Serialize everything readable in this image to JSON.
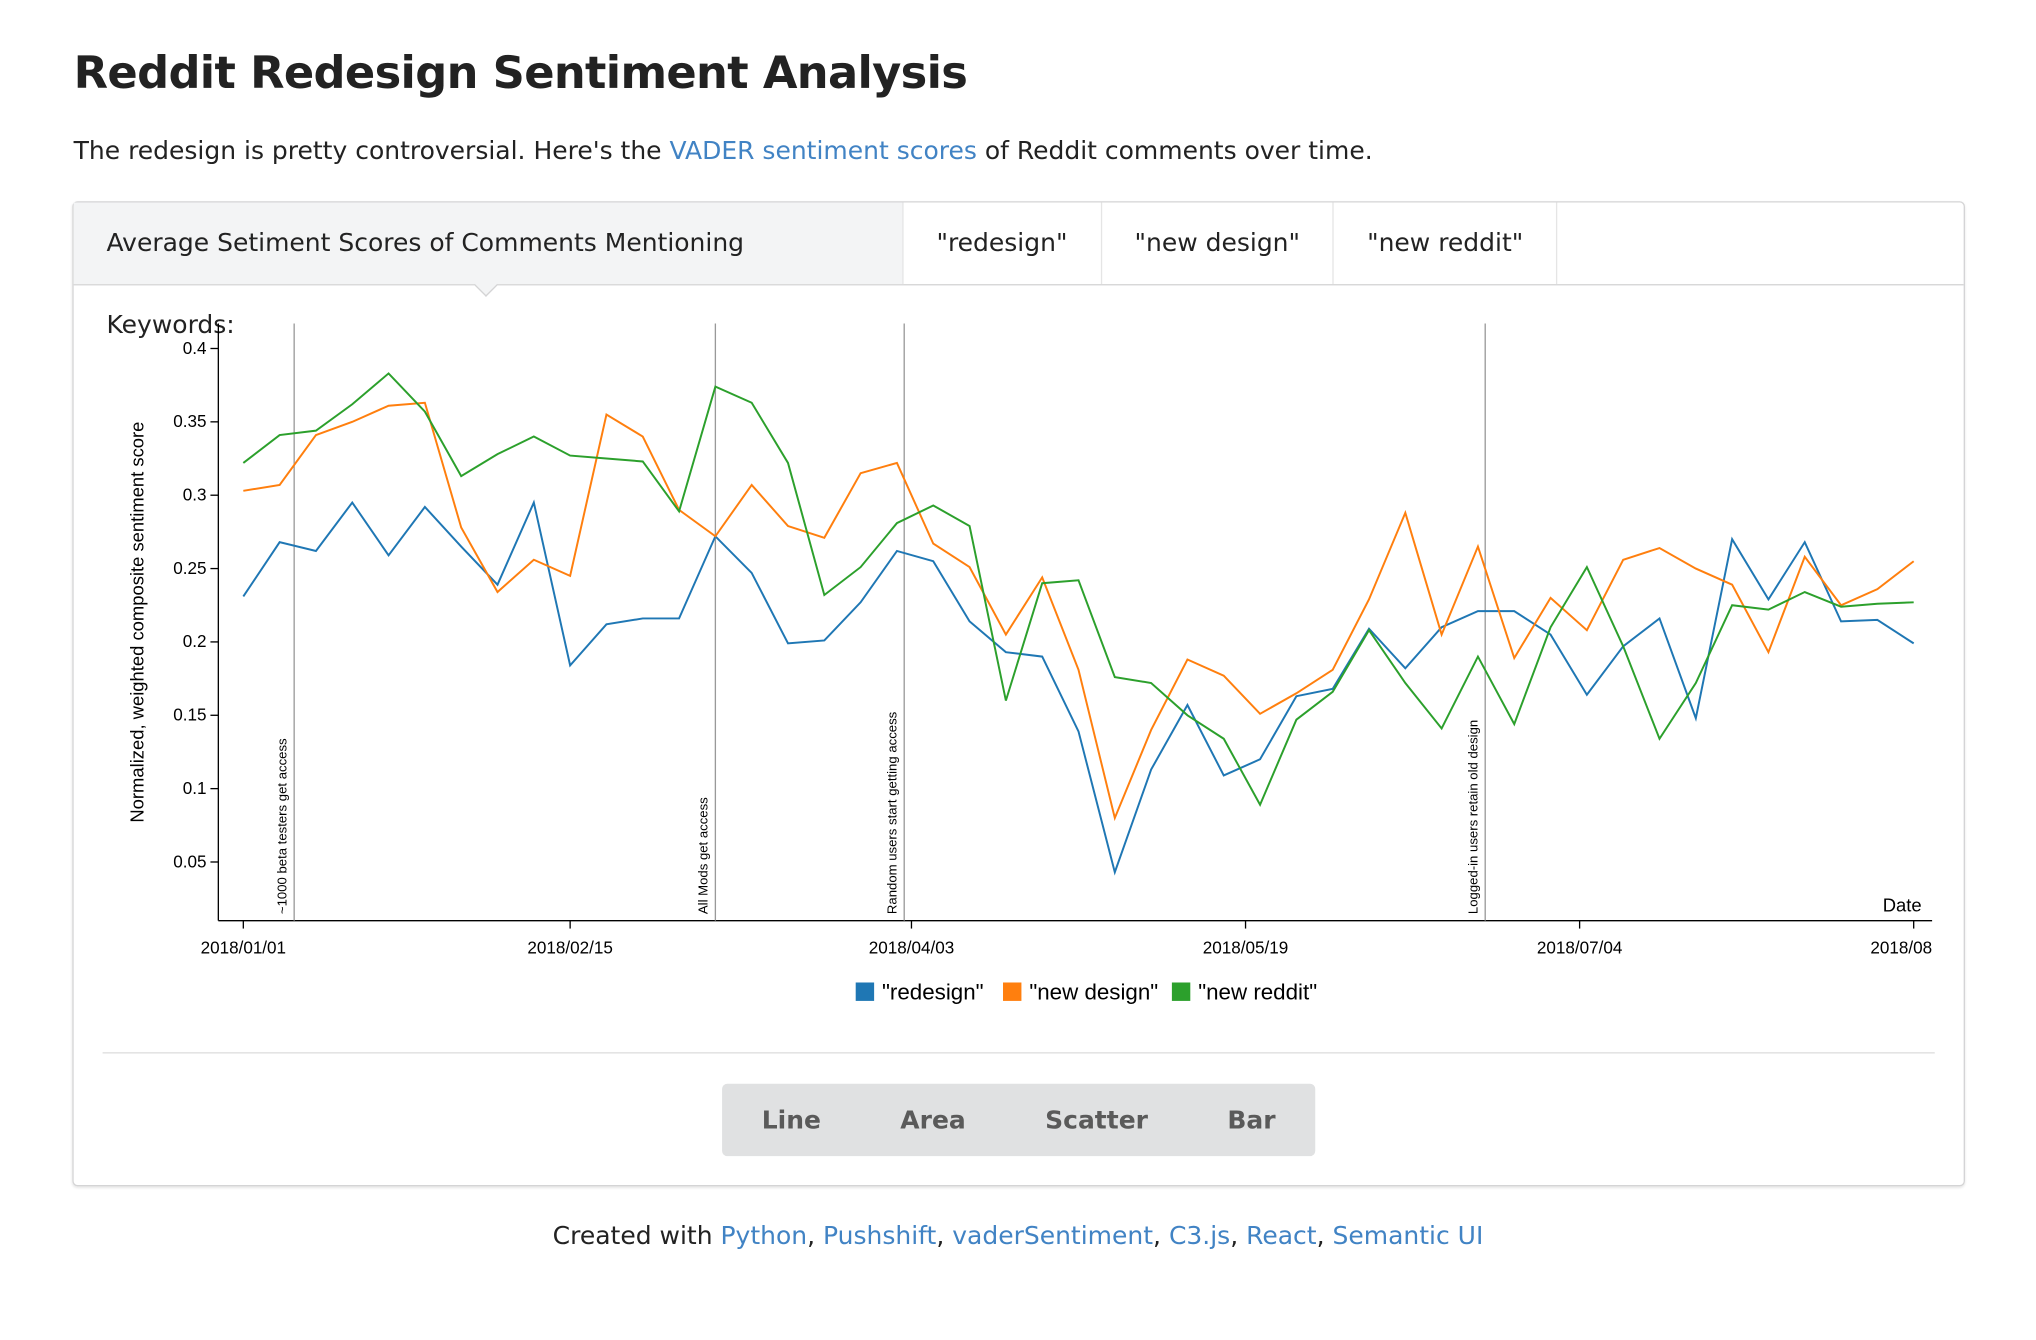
{
  "header": {
    "title": "Reddit Redesign Sentiment Analysis",
    "intro": {
      "before": "The redesign is pretty controversial. Here's the ",
      "link": "VADER sentiment scores",
      "after": " of Reddit comments over time."
    }
  },
  "tabs": {
    "label": "Average Setiment Scores of Comments Mentioning Keywords:",
    "items": [
      "\"redesign\"",
      "\"new design\"",
      "\"new reddit\""
    ]
  },
  "chart_data": {
    "type": "line",
    "ylabel": "Normalized, weighted composite sentiment score",
    "xlabel": "Date",
    "x": [
      "2018/01/01",
      "2018/01/06",
      "2018/01/11",
      "2018/01/16",
      "2018/01/21",
      "2018/01/26",
      "2018/01/31",
      "2018/02/05",
      "2018/02/10",
      "2018/02/15",
      "2018/02/20",
      "2018/02/25",
      "2018/03/02",
      "2018/03/07",
      "2018/03/12",
      "2018/03/17",
      "2018/03/22",
      "2018/03/27",
      "2018/04/01",
      "2018/04/06",
      "2018/04/11",
      "2018/04/16",
      "2018/04/21",
      "2018/04/26",
      "2018/05/01",
      "2018/05/06",
      "2018/05/11",
      "2018/05/16",
      "2018/05/21",
      "2018/05/26",
      "2018/05/31",
      "2018/06/05",
      "2018/06/10",
      "2018/06/15",
      "2018/06/20",
      "2018/06/25",
      "2018/06/30",
      "2018/07/05",
      "2018/07/10",
      "2018/07/15",
      "2018/07/20",
      "2018/07/25",
      "2018/07/30",
      "2018/08/04",
      "2018/08/09",
      "2018/08/14",
      "2018/08/19"
    ],
    "series": [
      {
        "name": "\"redesign\"",
        "color": "#1f77b4",
        "values": [
          0.231,
          0.268,
          0.262,
          0.295,
          0.259,
          0.292,
          0.265,
          0.239,
          0.295,
          0.184,
          0.212,
          0.216,
          0.216,
          0.272,
          0.247,
          0.199,
          0.201,
          0.227,
          0.262,
          0.255,
          0.214,
          0.193,
          0.19,
          0.139,
          0.043,
          0.113,
          0.157,
          0.109,
          0.12,
          0.163,
          0.168,
          0.209,
          0.182,
          0.21,
          0.221,
          0.221,
          0.205,
          0.164,
          0.197,
          0.216,
          0.148,
          0.27,
          0.229,
          0.268,
          0.214,
          0.215,
          0.199
        ]
      },
      {
        "name": "\"new design\"",
        "color": "#ff7f0e",
        "values": [
          0.303,
          0.307,
          0.341,
          0.35,
          0.361,
          0.363,
          0.278,
          0.234,
          0.256,
          0.245,
          0.355,
          0.34,
          0.29,
          0.272,
          0.307,
          0.279,
          0.271,
          0.315,
          0.322,
          0.267,
          0.251,
          0.205,
          0.244,
          0.181,
          0.08,
          0.14,
          0.188,
          0.177,
          0.151,
          0.165,
          0.181,
          0.229,
          0.288,
          0.205,
          0.265,
          0.189,
          0.23,
          0.208,
          0.256,
          0.264,
          0.25,
          0.239,
          0.193,
          0.258,
          0.225,
          0.236,
          0.255
        ]
      },
      {
        "name": "\"new reddit\"",
        "color": "#2ca02c",
        "values": [
          0.322,
          0.341,
          0.344,
          0.362,
          0.383,
          0.357,
          0.313,
          0.328,
          0.34,
          0.327,
          0.325,
          0.323,
          0.289,
          0.374,
          0.363,
          0.322,
          0.232,
          0.251,
          0.281,
          0.293,
          0.279,
          0.16,
          0.24,
          0.242,
          0.176,
          0.172,
          0.15,
          0.134,
          0.089,
          0.147,
          0.166,
          0.208,
          0.172,
          0.141,
          0.19,
          0.144,
          0.21,
          0.251,
          0.197,
          0.134,
          0.172,
          0.225,
          0.222,
          0.234,
          0.224,
          0.226,
          0.227
        ]
      }
    ],
    "xlim": [
      "2018/01/01",
      "2018/08/19"
    ],
    "xticks": [
      "2018/01/01",
      "2018/02/15",
      "2018/04/03",
      "2018/05/19",
      "2018/07/04",
      {
        "value": "2018/08/19",
        "label": "2018/08"
      }
    ],
    "ylim": [
      0.01,
      0.417
    ],
    "yticks": [
      0.05,
      0.1,
      0.15,
      0.2,
      0.25,
      0.3,
      0.35,
      0.4
    ],
    "annotations": [
      {
        "x": "2018/01/08",
        "text": "~1000 beta testers get access"
      },
      {
        "x": "2018/03/07",
        "text": "All Mods get access"
      },
      {
        "x": "2018/04/02",
        "text": "Random users start getting access"
      },
      {
        "x": "2018/06/21",
        "text": "Logged-in users retain old design"
      }
    ],
    "legend": "bottom",
    "grid": false
  },
  "chart_types": [
    "Line",
    "Area",
    "Scatter",
    "Bar"
  ],
  "footer": {
    "before": "Created with ",
    "separator": ", ",
    "links": [
      "Python",
      "Pushshift",
      "vaderSentiment",
      "C3.js",
      "React",
      "Semantic UI"
    ]
  }
}
